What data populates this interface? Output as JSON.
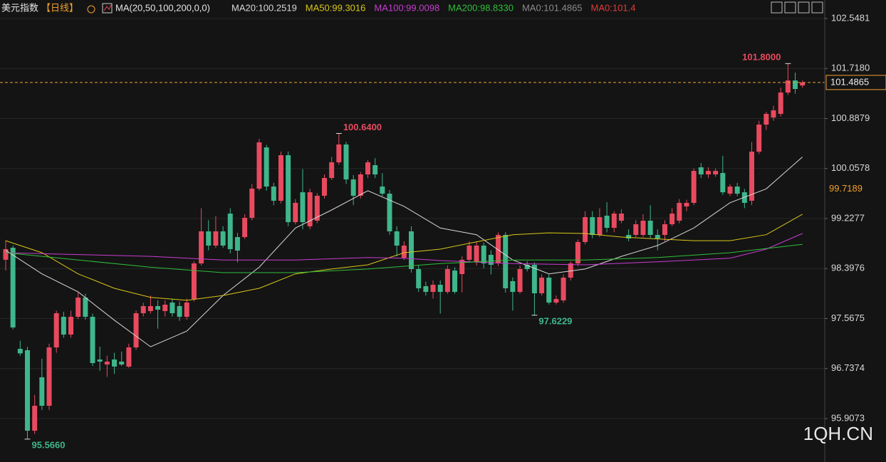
{
  "chart_data": {
    "type": "candlestick",
    "title": "美元指数",
    "period": "【日线】",
    "indicator": "MA(20,50,100,200,0,0)",
    "watermark": "1QH.CN",
    "up_color": "#e84a5f",
    "down_color": "#3fb68b",
    "ylim": [
      95.1866,
      102.8553
    ],
    "yticks": [
      102.5481,
      {
        "value": 101.718,
        "label": "101.7180"
      },
      100.8879,
      100.0578,
      99.2277,
      98.3976,
      97.5675,
      96.7374,
      95.9073
    ],
    "grid": true,
    "open": [
      98.543,
      98.743,
      97.065,
      97.042,
      95.706,
      96.593,
      96.12,
      97.089,
      97.597,
      97.302,
      97.597,
      97.916,
      97.597,
      96.888,
      96.805,
      96.888,
      96.853,
      96.77,
      97.089,
      97.656,
      97.692,
      97.774,
      97.692,
      97.833,
      97.774,
      97.597,
      97.892,
      98.483,
      99.015,
      98.779,
      99.015,
      99.31,
      98.92,
      98.92,
      99.239,
      99.724,
      100.409,
      99.759,
      99.523,
      100.279,
      99.168,
      99.664,
      99.098,
      99.192,
      99.606,
      99.901,
      100.161,
      100.457,
      99.877,
      99.606,
      99.96,
      100.114,
      99.759,
      99.641,
      99.015,
      98.578,
      99.015,
      98.389,
      98.105,
      98.01,
      98.129,
      98.01,
      98.365,
      98.306,
      98.543,
      98.507,
      98.779,
      98.625,
      98.483,
      98.956,
      98.188,
      98.01,
      98.46,
      98.46,
      97.987,
      98.247,
      97.833,
      97.869,
      98.247,
      98.483,
      98.838,
      99.251,
      98.956,
      99.275,
      99.074,
      99.192,
      98.956,
      98.956,
      98.956,
      99.192,
      98.956,
      98.956,
      99.133,
      99.192,
      99.429,
      99.488,
      100.078,
      99.96,
      99.96,
      99.984,
      99.641,
      99.759,
      99.664,
      99.523,
      100.338,
      100.787,
      100.905,
      100.965,
      101.319,
      101.52,
      101.437
    ],
    "high": [
      98.861,
      98.78,
      97.2,
      97.1,
      96.3,
      96.9,
      97.15,
      97.7,
      97.68,
      97.7,
      98.0,
      97.98,
      97.65,
      97.1,
      96.95,
      97.0,
      97.02,
      97.15,
      97.7,
      97.83,
      97.95,
      97.87,
      97.87,
      97.9,
      97.85,
      97.9,
      98.52,
      99.4,
      99.2,
      99.27,
      99.1,
      99.4,
      98.99,
      99.3,
      99.8,
      100.55,
      100.45,
      99.82,
      100.34,
      100.34,
      99.55,
      100.05,
      99.72,
      99.65,
      99.96,
      100.25,
      100.64,
      100.5,
      99.95,
      100.0,
      100.2,
      100.23,
      99.98,
      99.7,
      99.1,
      98.85,
      99.1,
      98.45,
      98.18,
      98.2,
      98.2,
      98.45,
      98.42,
      98.6,
      98.85,
      98.85,
      98.83,
      98.7,
      99.0,
      99.0,
      98.25,
      98.45,
      98.52,
      98.5,
      98.3,
      98.3,
      97.95,
      98.3,
      98.52,
      98.88,
      99.35,
      99.35,
      99.4,
      99.5,
      99.35,
      99.38,
      99.05,
      99.2,
      99.3,
      99.45,
      99.05,
      99.2,
      99.4,
      99.55,
      99.54,
      100.06,
      100.15,
      100.08,
      100.06,
      100.27,
      99.8,
      99.82,
      99.72,
      100.5,
      100.85,
      101.0,
      101.1,
      101.4,
      101.8,
      101.65,
      101.52
    ],
    "low": [
      98.365,
      97.39,
      96.95,
      95.566,
      95.65,
      96.05,
      96.05,
      97.0,
      97.25,
      97.25,
      97.56,
      97.55,
      96.78,
      96.7,
      96.6,
      96.65,
      96.78,
      96.75,
      97.05,
      97.6,
      97.65,
      97.4,
      97.6,
      97.6,
      97.53,
      97.55,
      97.85,
      98.45,
      98.7,
      98.74,
      98.74,
      98.65,
      98.5,
      98.89,
      99.2,
      99.69,
      99.69,
      99.45,
      99.48,
      99.1,
      99.13,
      99.05,
      99.05,
      99.15,
      99.56,
      99.87,
      100.12,
      99.8,
      99.45,
      99.56,
      99.9,
      99.9,
      99.6,
      98.96,
      98.6,
      98.54,
      98.33,
      98.01,
      97.95,
      97.9,
      97.65,
      97.98,
      97.98,
      98.0,
      98.5,
      98.45,
      98.4,
      98.3,
      98.44,
      98.0,
      97.7,
      97.98,
      98.35,
      97.6229,
      97.95,
      97.8,
      97.8,
      97.83,
      98.2,
      98.44,
      98.8,
      98.9,
      98.92,
      99.0,
      99.0,
      99.15,
      98.85,
      98.92,
      98.92,
      98.9,
      98.7,
      98.85,
      99.1,
      99.15,
      99.35,
      99.45,
      99.9,
      99.9,
      99.92,
      99.62,
      99.6,
      99.6,
      99.4,
      99.45,
      100.3,
      100.7,
      100.85,
      100.92,
      101.28,
      101.3,
      101.4
    ],
    "close": [
      98.72,
      97.42,
      96.99,
      95.706,
      96.12,
      96.12,
      97.089,
      97.656,
      97.302,
      97.597,
      97.916,
      97.597,
      96.829,
      96.853,
      96.853,
      96.77,
      96.805,
      97.089,
      97.656,
      97.774,
      97.774,
      97.715,
      97.798,
      97.656,
      97.597,
      97.833,
      98.483,
      99.015,
      98.779,
      99.015,
      98.779,
      98.72,
      98.696,
      99.239,
      99.724,
      100.492,
      99.759,
      99.523,
      100.279,
      99.168,
      99.488,
      99.168,
      99.664,
      99.606,
      99.901,
      100.161,
      100.457,
      99.877,
      99.606,
      99.96,
      100.161,
      99.96,
      99.641,
      99.015,
      98.779,
      98.779,
      98.389,
      98.07,
      98.01,
      98.129,
      98.01,
      98.389,
      98.01,
      98.543,
      98.779,
      98.779,
      98.483,
      98.46,
      98.956,
      98.07,
      98.01,
      98.389,
      98.389,
      97.987,
      98.247,
      97.833,
      97.892,
      98.247,
      98.483,
      98.838,
      99.251,
      98.956,
      99.251,
      99.074,
      99.31,
      99.31,
      98.897,
      99.133,
      99.192,
      98.956,
      98.897,
      99.133,
      99.31,
      99.488,
      99.488,
      100.019,
      99.96,
      100.019,
      100.019,
      99.664,
      99.759,
      99.641,
      99.488,
      100.338,
      100.787,
      100.965,
      101.024,
      101.319,
      101.52,
      101.378,
      101.4865
    ],
    "series": [
      {
        "name": "MA20:100.2519",
        "color": "#d8d8d8",
        "x": [
          0,
          5,
          10,
          15,
          20,
          25,
          30,
          35,
          40,
          45,
          50,
          55,
          60,
          65,
          70,
          75,
          80,
          85,
          90,
          95,
          100,
          105,
          110
        ],
        "values": [
          98.7,
          98.31,
          98.01,
          97.54,
          97.1,
          97.36,
          97.95,
          98.42,
          99.07,
          99.37,
          99.69,
          99.43,
          99.07,
          98.96,
          98.54,
          98.31,
          98.39,
          98.6,
          98.78,
          99.07,
          99.49,
          99.72,
          100.25
        ]
      },
      {
        "name": "MA50:99.3016",
        "color": "#d9c61a",
        "x": [
          0,
          5,
          10,
          15,
          20,
          25,
          30,
          35,
          40,
          45,
          50,
          55,
          60,
          65,
          70,
          75,
          80,
          85,
          90,
          95,
          100,
          105,
          110
        ],
        "values": [
          98.86,
          98.66,
          98.31,
          98.07,
          97.92,
          97.87,
          97.95,
          98.07,
          98.31,
          98.39,
          98.46,
          98.66,
          98.72,
          98.84,
          98.96,
          98.99,
          98.98,
          98.92,
          98.89,
          98.86,
          98.86,
          98.96,
          99.3
        ]
      },
      {
        "name": "MA100:99.0098",
        "color": "#c83cd2",
        "x": [
          0,
          10,
          20,
          30,
          40,
          50,
          55,
          60,
          70,
          80,
          90,
          100,
          105,
          110
        ],
        "values": [
          98.66,
          98.63,
          98.6,
          98.54,
          98.54,
          98.58,
          98.57,
          98.53,
          98.48,
          98.46,
          98.51,
          98.57,
          98.72,
          98.98
        ]
      },
      {
        "name": "MA200:98.8330",
        "color": "#2fbf3a",
        "x": [
          0,
          10,
          20,
          30,
          40,
          50,
          60,
          70,
          80,
          90,
          100,
          110
        ],
        "values": [
          98.66,
          98.54,
          98.42,
          98.33,
          98.33,
          98.39,
          98.48,
          98.54,
          98.54,
          98.58,
          98.66,
          98.8
        ]
      }
    ],
    "legend_extra": [
      {
        "name": "MA0:101.4865",
        "color": "#8a8a8a"
      },
      {
        "name": "MA0:101.4",
        "color": "#e23b3b"
      }
    ],
    "annotations_high": [
      {
        "value": 101.8,
        "label": "101.8000"
      },
      {
        "value": 100.64,
        "label": "100.6400"
      }
    ],
    "annotations_low": [
      97.6229,
      {
        "value": 95.566,
        "label": "95.5660"
      }
    ],
    "current_price": 101.4865,
    "marker_price": 99.7189,
    "price_color": "#f0a030"
  }
}
